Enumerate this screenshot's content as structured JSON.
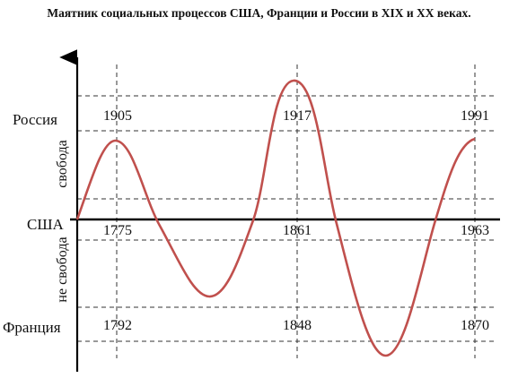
{
  "title": "Маятник социальных процессов США, Франции и России в XIX и XX веках.",
  "rows": {
    "russia": "Россия",
    "usa": "США",
    "france": "Франция"
  },
  "axis_labels": {
    "upper": "свобода",
    "lower": "не свобода"
  },
  "years": {
    "russia": [
      "1905",
      "1917",
      "1991"
    ],
    "usa": [
      "1775",
      "1861",
      "1963"
    ],
    "france": [
      "1792",
      "1848",
      "1870"
    ]
  },
  "colors": {
    "curve": "#c0504d",
    "axis": "#000000",
    "dash": "#333333"
  }
}
